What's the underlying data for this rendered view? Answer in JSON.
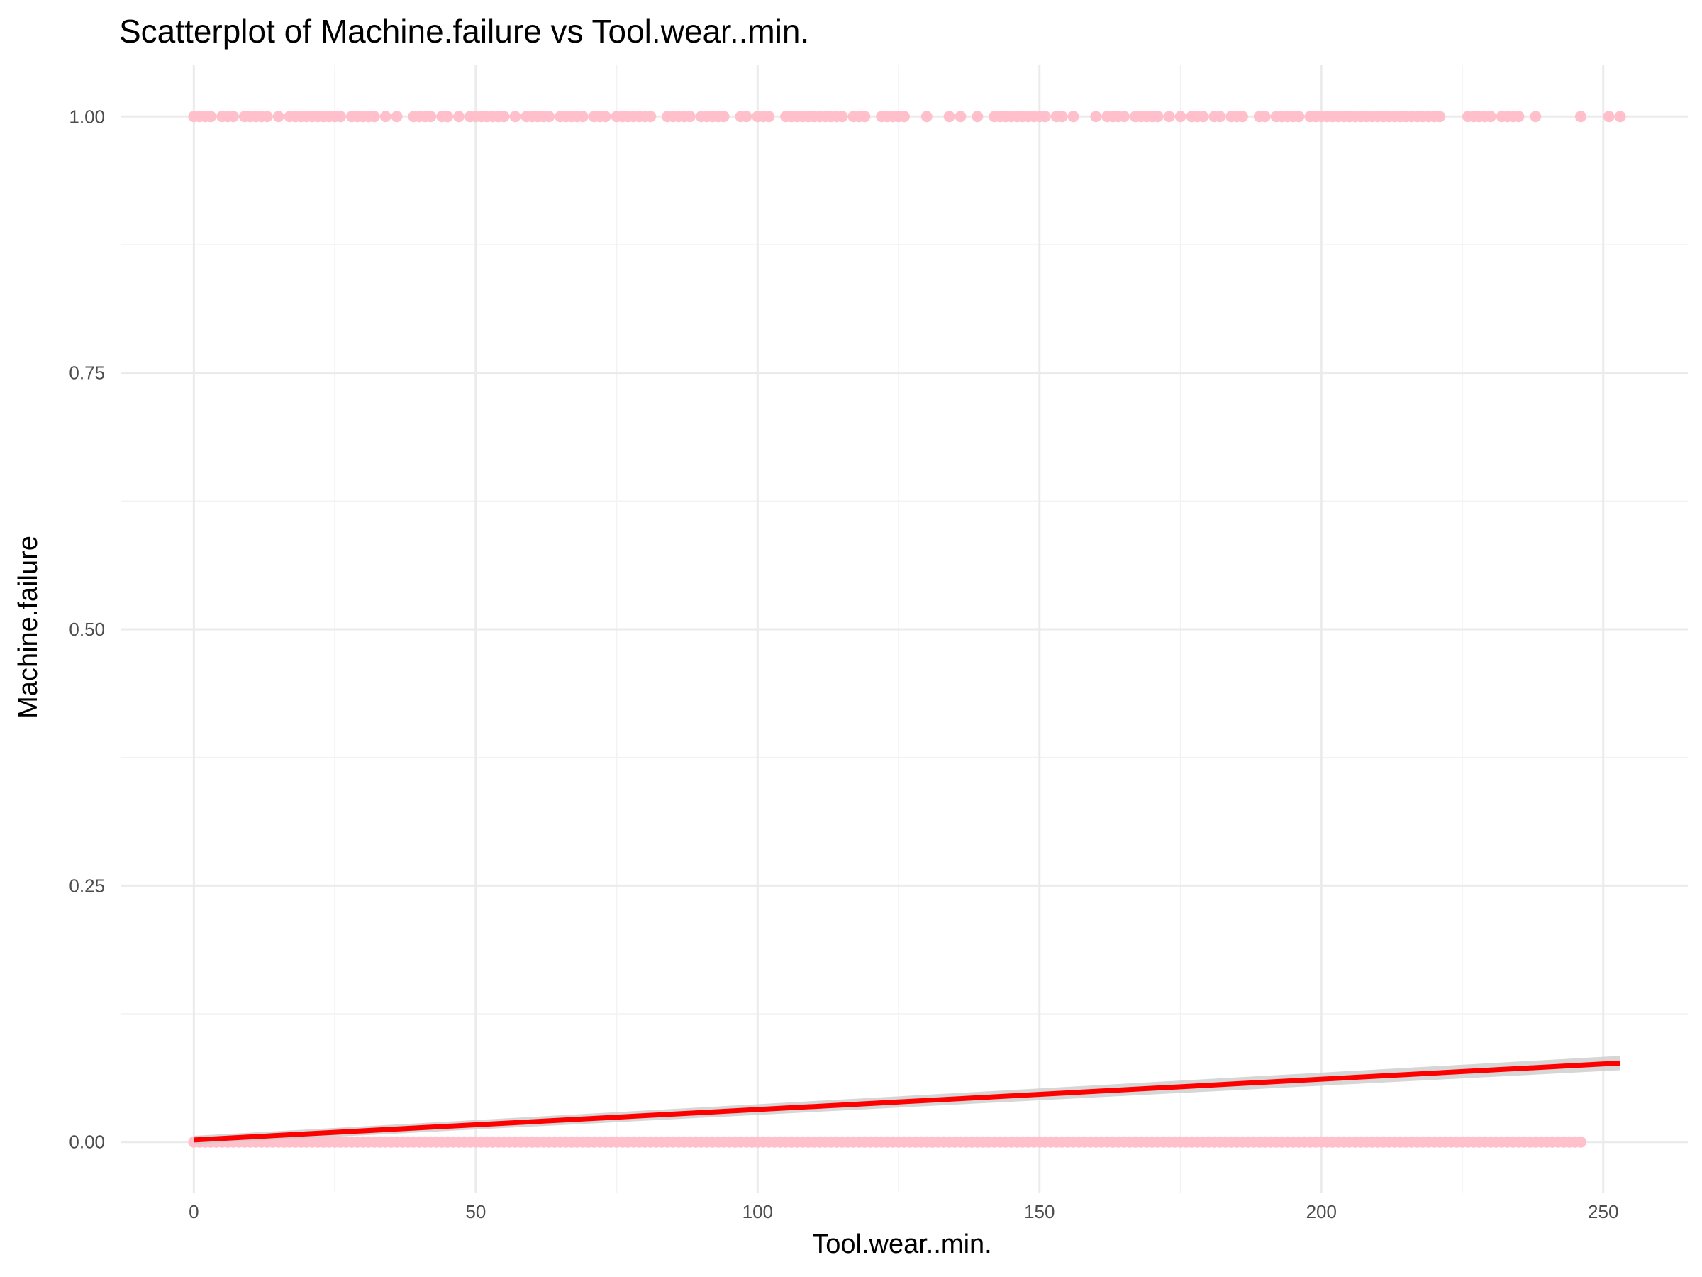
{
  "chart_data": {
    "type": "scatter",
    "title": "Scatterplot of Machine.failure vs Tool.wear..min.",
    "xlabel": "Tool.wear..min.",
    "ylabel": "Machine.failure",
    "xlim": [
      -13,
      265
    ],
    "ylim": [
      -0.05,
      1.05
    ],
    "x_ticks": [
      0,
      50,
      100,
      150,
      200,
      250
    ],
    "x_tick_labels": [
      "0",
      "50",
      "100",
      "150",
      "200",
      "250"
    ],
    "y_ticks": [
      0,
      0.25,
      0.5,
      0.75,
      1
    ],
    "y_tick_labels": [
      "0.00",
      "0.25",
      "0.50",
      "0.75",
      "1.00"
    ],
    "grid": true,
    "legend": "none",
    "point_color": "#ffc0cb",
    "series": [
      {
        "y": 1,
        "x": [
          0,
          1,
          2,
          3,
          5,
          6,
          7,
          9,
          10,
          11,
          12,
          13,
          15,
          17,
          18,
          19,
          20,
          21,
          22,
          23,
          24,
          25,
          26,
          28,
          29,
          30,
          31,
          32,
          34,
          36,
          39,
          40,
          41,
          42,
          44,
          45,
          47,
          49,
          50,
          51,
          52,
          53,
          54,
          55,
          57,
          59,
          60,
          61,
          62,
          63,
          65,
          66,
          67,
          68,
          69,
          71,
          72,
          73,
          75,
          76,
          77,
          78,
          79,
          80,
          81,
          84,
          85,
          86,
          87,
          88,
          90,
          91,
          92,
          93,
          94,
          97,
          98,
          100,
          101,
          102,
          105,
          106,
          107,
          108,
          109,
          110,
          111,
          112,
          113,
          114,
          115,
          117,
          118,
          119,
          122,
          123,
          124,
          125,
          126,
          130,
          134,
          136,
          139,
          142,
          143,
          144,
          145,
          146,
          147,
          148,
          149,
          150,
          151,
          153,
          154,
          156,
          160,
          162,
          163,
          164,
          165,
          167,
          168,
          169,
          170,
          171,
          173,
          175,
          177,
          178,
          179,
          181,
          182,
          184,
          185,
          186,
          189,
          190,
          192,
          193,
          194,
          195,
          196,
          198,
          199,
          200,
          201,
          202,
          203,
          204,
          205,
          206,
          207,
          208,
          209,
          210,
          211,
          212,
          213,
          214,
          215,
          216,
          217,
          218,
          219,
          220,
          221,
          226,
          227,
          228,
          229,
          230,
          232,
          233,
          234,
          235,
          238,
          246,
          251,
          253
        ]
      },
      {
        "y": 0,
        "x_range": [
          0,
          246
        ],
        "x_step": 1
      }
    ],
    "trend_line": {
      "color": "#ff0000",
      "band_color": "#cccccc",
      "points": [
        [
          0,
          0.002
        ],
        [
          253,
          0.077
        ]
      ],
      "band_halfwidth_at_start": 0.004,
      "band_halfwidth_at_end": 0.007
    }
  }
}
